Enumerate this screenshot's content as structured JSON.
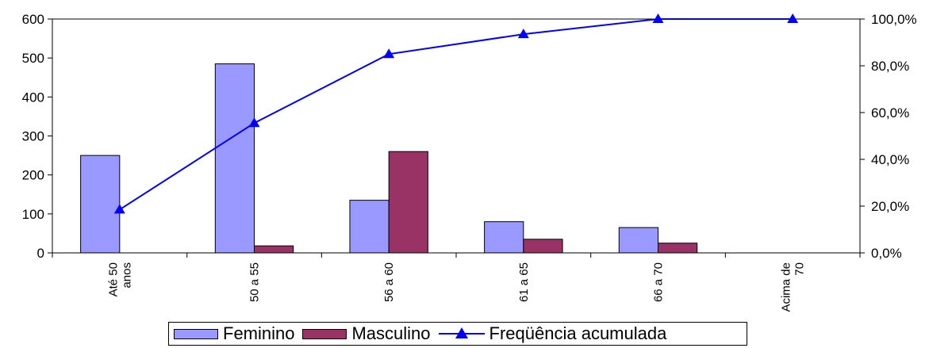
{
  "chart_data": {
    "type": "bar",
    "categories": [
      "Até 50 anos",
      "50 a  55",
      "56 a 60",
      "61 a 65",
      "66 a 70",
      "Acima de 70"
    ],
    "category_lines": [
      [
        "Até 50",
        "anos"
      ],
      [
        "50 a  55"
      ],
      [
        "56 a 60"
      ],
      [
        "61 a 65"
      ],
      [
        "66 a 70"
      ],
      [
        "Acima de",
        "70"
      ]
    ],
    "series": [
      {
        "name": "Feminino",
        "type": "bar",
        "axis": "left",
        "color": "#9999ff",
        "values": [
          250,
          485,
          135,
          80,
          65,
          0
        ]
      },
      {
        "name": "Masculino",
        "type": "bar",
        "axis": "left",
        "color": "#993366",
        "values": [
          0,
          18,
          260,
          35,
          25,
          0
        ]
      },
      {
        "name": "Freqüência acumulada",
        "type": "line",
        "axis": "right",
        "color": "#0000ff",
        "values": [
          18.5,
          55.5,
          85.0,
          93.5,
          100.0,
          100.0
        ]
      }
    ],
    "y_left": {
      "ylim": [
        0,
        600
      ],
      "ticks": [
        0,
        100,
        200,
        300,
        400,
        500,
        600
      ],
      "tick_labels": [
        "0",
        "100",
        "200",
        "300",
        "400",
        "500",
        "600"
      ]
    },
    "y_right": {
      "ylim": [
        0,
        100
      ],
      "ticks": [
        0,
        20,
        40,
        60,
        80,
        100
      ],
      "tick_labels": [
        "0,0%",
        "20,0%",
        "40,0%",
        "60,0%",
        "80,0%",
        "100,0%"
      ]
    },
    "grid": false,
    "legend": "bottom",
    "title": "",
    "xlabel": "",
    "ylabel": ""
  }
}
